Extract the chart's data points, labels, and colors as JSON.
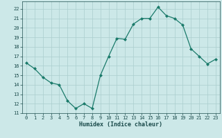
{
  "x": [
    0,
    1,
    2,
    3,
    4,
    5,
    6,
    7,
    8,
    9,
    10,
    11,
    12,
    13,
    14,
    15,
    16,
    17,
    18,
    19,
    20,
    21,
    22,
    23
  ],
  "y": [
    16.3,
    15.7,
    14.8,
    14.2,
    14.0,
    12.3,
    11.5,
    12.0,
    11.5,
    15.0,
    17.0,
    18.9,
    18.8,
    20.4,
    21.0,
    21.0,
    22.2,
    21.3,
    21.0,
    20.3,
    17.8,
    17.0,
    16.2,
    16.7
  ],
  "xlabel": "Humidex (Indice chaleur)",
  "xlim": [
    -0.5,
    23.5
  ],
  "ylim": [
    11,
    22.8
  ],
  "yticks": [
    11,
    12,
    13,
    14,
    15,
    16,
    17,
    18,
    19,
    20,
    21,
    22
  ],
  "xticks": [
    0,
    1,
    2,
    3,
    4,
    5,
    6,
    7,
    8,
    9,
    10,
    11,
    12,
    13,
    14,
    15,
    16,
    17,
    18,
    19,
    20,
    21,
    22,
    23
  ],
  "line_color": "#1a7a6a",
  "marker_color": "#1a7a6a",
  "bg_color": "#cce8e8",
  "grid_color": "#aacece",
  "tick_color": "#1a4a4a",
  "label_fontsize": 5.0,
  "xlabel_fontsize": 6.0,
  "line_width": 0.9,
  "marker_size": 2.0
}
